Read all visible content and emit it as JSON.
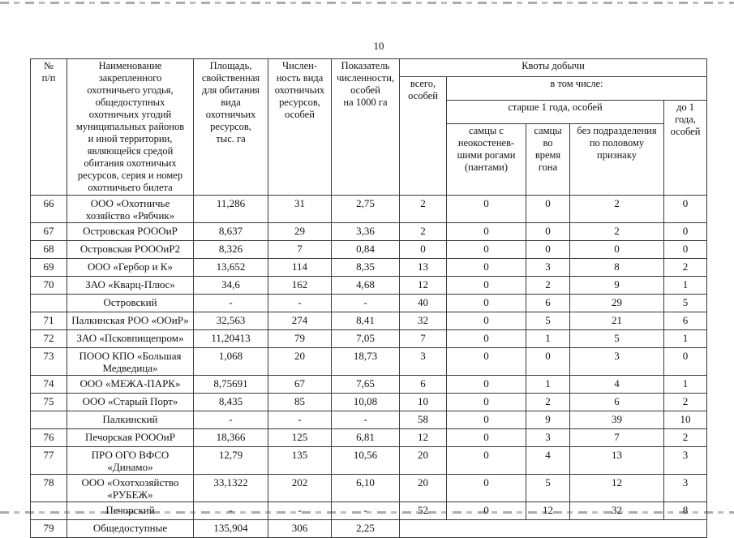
{
  "page": {
    "number": "10"
  },
  "table": {
    "headers": {
      "col_num": "№\nп/п",
      "col_name": "Наименование\nзакрепленного\nохотничьего угодья,\nобщедоступных\nохотничьих угодий\nмуниципальных районов\nи иной территории,\nявляющейся средой\nобитания охотничьих\nресурсов, серия и номер\nохотничьего билета",
      "col_area": "Площадь,\nсвойственная\nдля обитания\nвида\nохотничьих\nресурсов,\nтыс. га",
      "col_population": "Числен-\nность вида\nохотничьих\nресурсов,\nособей",
      "col_density": "Показатель\nчисленности,\nособей\nна 1000 га",
      "quota_group": "Квоты добычи",
      "col_total": "всего,\nособей",
      "including": "в том числе:",
      "older_group": "старше 1 года, особей",
      "col_males_antlers": "самцы с\nнеокостенев-\nшими рогами\n(пантами)",
      "col_males_rut": "самцы\nво\nвремя\nгона",
      "col_no_division": "без подразделения\nпо половому\nпризнаку",
      "col_young": "до 1\nгода,\nособей"
    },
    "rows": [
      {
        "kind": "normal",
        "num": "66",
        "name": "ООО «Охотничье хозяйство «Рябчик»",
        "area": "11,286",
        "population": "31",
        "density": "2,75",
        "quotas": [
          "2",
          "0",
          "0",
          "2",
          "0"
        ]
      },
      {
        "kind": "normal",
        "num": "67",
        "name": "Островская РОООиР",
        "area": "8,637",
        "population": "29",
        "density": "3,36",
        "quotas": [
          "2",
          "0",
          "0",
          "2",
          "0"
        ]
      },
      {
        "kind": "normal",
        "num": "68",
        "name": "Островская РОООиР2",
        "area": "8,326",
        "population": "7",
        "density": "0,84",
        "quotas": [
          "0",
          "0",
          "0",
          "0",
          "0"
        ]
      },
      {
        "kind": "normal",
        "num": "69",
        "name": "ООО «Гербор и К»",
        "area": "13,652",
        "population": "114",
        "density": "8,35",
        "quotas": [
          "13",
          "0",
          "3",
          "8",
          "2"
        ]
      },
      {
        "kind": "normal",
        "num": "70",
        "name": "ЗАО «Кварц-Плюс»",
        "area": "34,6",
        "population": "162",
        "density": "4,68",
        "quotas": [
          "12",
          "0",
          "2",
          "9",
          "1"
        ]
      },
      {
        "kind": "summary",
        "num": "",
        "name": "Островский",
        "area": "-",
        "population": "-",
        "density": "-",
        "quotas": [
          "40",
          "0",
          "6",
          "29",
          "5"
        ]
      },
      {
        "kind": "normal",
        "num": "71",
        "name": "Палкинская РОО «ООиР»",
        "area": "32,563",
        "population": "274",
        "density": "8,41",
        "quotas": [
          "32",
          "0",
          "5",
          "21",
          "6"
        ]
      },
      {
        "kind": "normal",
        "num": "72",
        "name": "ЗАО «Псковпищепром»",
        "area": "11,20413",
        "population": "79",
        "density": "7,05",
        "quotas": [
          "7",
          "0",
          "1",
          "5",
          "1"
        ]
      },
      {
        "kind": "normal",
        "num": "73",
        "name": "ПООО КПО «Большая Медведица»",
        "area": "1,068",
        "population": "20",
        "density": "18,73",
        "quotas": [
          "3",
          "0",
          "0",
          "3",
          "0"
        ]
      },
      {
        "kind": "normal",
        "num": "74",
        "name": "ООО «МЕЖА-ПАРК»",
        "area": "8,75691",
        "population": "67",
        "density": "7,65",
        "quotas": [
          "6",
          "0",
          "1",
          "4",
          "1"
        ]
      },
      {
        "kind": "normal",
        "num": "75",
        "name": "ООО «Старый Порт»",
        "area": "8,435",
        "population": "85",
        "density": "10,08",
        "quotas": [
          "10",
          "0",
          "2",
          "6",
          "2"
        ]
      },
      {
        "kind": "summary",
        "num": "",
        "name": "Палкинский",
        "area": "-",
        "population": "-",
        "density": "-",
        "quotas": [
          "58",
          "0",
          "9",
          "39",
          "10"
        ]
      },
      {
        "kind": "normal",
        "num": "76",
        "name": "Печорская РОООиР",
        "area": "18,366",
        "population": "125",
        "density": "6,81",
        "quotas": [
          "12",
          "0",
          "3",
          "7",
          "2"
        ]
      },
      {
        "kind": "normal",
        "num": "77",
        "name": "ПРО ОГО ВФСО «Динамо»",
        "area": "12,79",
        "population": "135",
        "density": "10,56",
        "quotas": [
          "20",
          "0",
          "4",
          "13",
          "3"
        ]
      },
      {
        "kind": "normal",
        "num": "78",
        "name": "ООО «Охотхозяйство «РУБЕЖ»",
        "area": "33,1322",
        "population": "202",
        "density": "6,10",
        "quotas": [
          "20",
          "0",
          "5",
          "12",
          "3"
        ]
      },
      {
        "kind": "summary",
        "num": "",
        "name": "Печорский",
        "area": "-",
        "population": "-",
        "density": "-",
        "quotas": [
          "52",
          "0",
          "12",
          "32",
          "8"
        ]
      },
      {
        "kind": "normal",
        "num": "79",
        "name": "Общедоступные",
        "area": "135,904",
        "population": "306",
        "density": "2,25",
        "quotas": null
      }
    ]
  }
}
